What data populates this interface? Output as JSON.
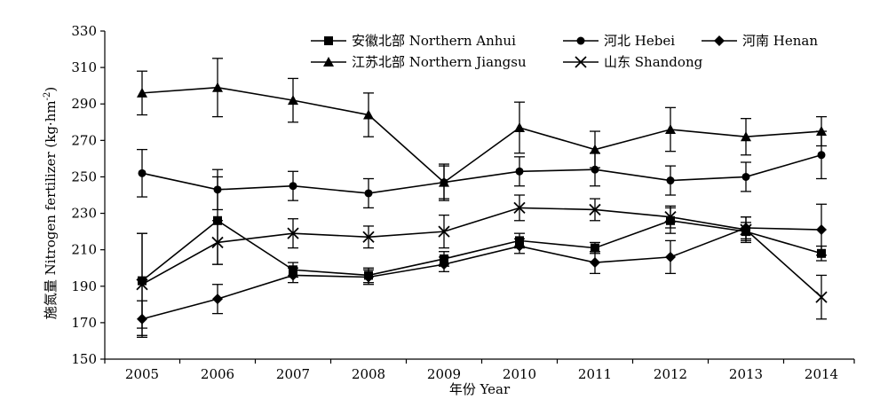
{
  "chart_data": {
    "type": "line",
    "title": "",
    "xlabel": "年份 Year",
    "ylabel": "施氮量 Nitrogen fertilizer (kg·hm⁻²)",
    "ylabel_main": "施氮量 Nitrogen fertilizer (kg·hm",
    "ylabel_sup": "-2",
    "ylabel_end": ")",
    "ylim": [
      150,
      330
    ],
    "yticks": [
      150,
      170,
      190,
      210,
      230,
      250,
      270,
      290,
      310,
      330
    ],
    "x": [
      2005,
      2006,
      2007,
      2008,
      2009,
      2010,
      2011,
      2012,
      2013,
      2014
    ],
    "xtick_labels": [
      "2005",
      "2006",
      "2007",
      "2008",
      "2009",
      "2010",
      "2011",
      "2012",
      "2013",
      "2014"
    ],
    "legend_position": "top",
    "series": [
      {
        "name": "安徽北部 Northern Anhui",
        "marker": "square",
        "values": [
          193,
          226,
          199,
          196,
          205,
          215,
          211,
          226,
          220,
          208
        ],
        "errors": [
          26,
          24,
          4,
          4,
          4,
          4,
          3,
          7,
          5,
          4
        ]
      },
      {
        "name": "河北 Hebei",
        "marker": "circle",
        "values": [
          252,
          243,
          245,
          241,
          247,
          253,
          254,
          248,
          250,
          262
        ],
        "errors": [
          13,
          11,
          8,
          8,
          9,
          8,
          9,
          8,
          8,
          13
        ]
      },
      {
        "name": "河南 Henan",
        "marker": "diamond",
        "values": [
          172,
          183,
          196,
          195,
          202,
          212,
          203,
          206,
          222,
          221
        ],
        "errors": [
          10,
          8,
          4,
          4,
          4,
          4,
          6,
          9,
          6,
          14
        ]
      },
      {
        "name": "江苏北部 Northern Jiangsu",
        "marker": "triangle",
        "values": [
          296,
          299,
          292,
          284,
          247,
          277,
          265,
          276,
          272,
          275
        ],
        "errors": [
          12,
          16,
          12,
          12,
          10,
          14,
          10,
          12,
          10,
          8
        ]
      },
      {
        "name": "山东 Shandong",
        "marker": "x",
        "values": [
          191,
          214,
          219,
          217,
          220,
          233,
          232,
          228,
          221,
          184
        ],
        "errors": [
          28,
          12,
          8,
          6,
          9,
          7,
          6,
          6,
          7,
          12
        ]
      }
    ]
  }
}
